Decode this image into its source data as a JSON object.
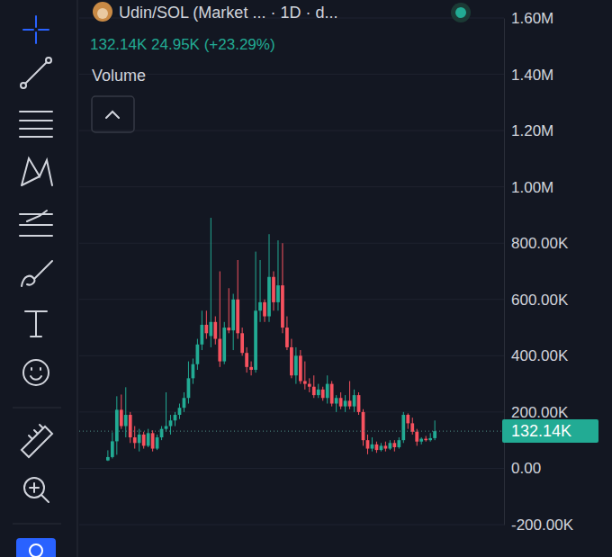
{
  "chart_data": {
    "type": "candlestick",
    "title": "Udin/SOL (Market ... · 1D · d...",
    "subtitle": "132.14K 24.95K (+23.29%)",
    "annotations": [
      {
        "label": "Volume"
      },
      {
        "value": 132140,
        "label": "132.14K"
      }
    ],
    "categories": [
      null,
      null,
      null,
      null,
      null,
      null,
      null,
      null,
      null,
      null,
      null,
      null,
      null,
      null,
      null,
      null,
      null,
      null,
      null,
      null,
      null,
      null,
      null,
      null,
      null,
      null,
      null,
      null,
      null,
      null,
      null,
      null,
      null,
      null,
      null,
      null,
      null,
      null,
      null,
      null,
      null,
      null,
      null,
      null,
      null,
      null,
      null,
      null,
      null,
      null,
      null,
      null,
      null,
      null,
      null,
      null,
      null,
      null,
      null,
      null,
      null,
      null,
      null,
      null,
      null,
      null,
      null,
      null,
      null,
      null,
      null,
      null,
      null,
      null
    ],
    "open": [
      28000,
      40000,
      96000,
      208000,
      150000,
      190000,
      110000,
      90000,
      120000,
      80000,
      125000,
      70000,
      110000,
      140000,
      150000,
      170000,
      190000,
      215000,
      250000,
      320000,
      370000,
      440000,
      510000,
      470000,
      520000,
      460000,
      380000,
      500000,
      490000,
      600000,
      480000,
      410000,
      360000,
      350000,
      560000,
      590000,
      540000,
      680000,
      590000,
      650000,
      500000,
      430000,
      330000,
      400000,
      310000,
      300000,
      290000,
      260000,
      280000,
      250000,
      300000,
      230000,
      250000,
      220000,
      240000,
      220000,
      260000,
      200000,
      100000,
      70000,
      85000,
      65000,
      80000,
      70000,
      90000,
      75000,
      100000,
      190000,
      160000,
      130000,
      95000,
      105000,
      100000,
      107190
    ],
    "high": [
      64000,
      128000,
      256000,
      262000,
      288000,
      200000,
      150000,
      140000,
      130000,
      140000,
      135000,
      120000,
      150000,
      270000,
      190000,
      200000,
      230000,
      270000,
      380000,
      390000,
      460000,
      560000,
      560000,
      890000,
      540000,
      700000,
      520000,
      640000,
      620000,
      740000,
      500000,
      430000,
      380000,
      770000,
      740000,
      600000,
      832000,
      700000,
      810000,
      800000,
      540000,
      460000,
      430000,
      420000,
      380000,
      320000,
      330000,
      300000,
      290000,
      330000,
      310000,
      260000,
      270000,
      260000,
      310000,
      280000,
      270000,
      210000,
      120000,
      110000,
      95000,
      90000,
      95000,
      100000,
      100000,
      110000,
      200000,
      195000,
      180000,
      140000,
      110000,
      115000,
      125000,
      170000
    ],
    "low": [
      26000,
      35000,
      48000,
      140000,
      110000,
      90000,
      70000,
      60000,
      70000,
      75000,
      60000,
      65000,
      100000,
      130000,
      120000,
      150000,
      175000,
      200000,
      230000,
      300000,
      350000,
      420000,
      460000,
      430000,
      440000,
      360000,
      370000,
      480000,
      420000,
      460000,
      400000,
      340000,
      330000,
      340000,
      520000,
      520000,
      520000,
      560000,
      560000,
      480000,
      420000,
      320000,
      300000,
      300000,
      280000,
      270000,
      250000,
      250000,
      240000,
      230000,
      220000,
      200000,
      210000,
      200000,
      210000,
      200000,
      190000,
      80000,
      50000,
      60000,
      55000,
      60000,
      60000,
      65000,
      60000,
      70000,
      90000,
      140000,
      120000,
      80000,
      85000,
      95000,
      95000,
      100000
    ],
    "close": [
      40000,
      96000,
      208000,
      150000,
      190000,
      110000,
      90000,
      120000,
      80000,
      125000,
      70000,
      110000,
      140000,
      150000,
      170000,
      190000,
      215000,
      250000,
      320000,
      370000,
      440000,
      510000,
      480000,
      520000,
      460000,
      380000,
      500000,
      490000,
      600000,
      480000,
      410000,
      360000,
      350000,
      560000,
      590000,
      540000,
      680000,
      590000,
      650000,
      500000,
      430000,
      330000,
      400000,
      310000,
      300000,
      290000,
      260000,
      280000,
      250000,
      300000,
      230000,
      250000,
      220000,
      240000,
      220000,
      260000,
      200000,
      100000,
      70000,
      85000,
      65000,
      80000,
      70000,
      90000,
      75000,
      100000,
      190000,
      160000,
      130000,
      95000,
      105000,
      100000,
      107190,
      132140
    ],
    "colors": [
      "#22ab94",
      "#22ab94",
      "#22ab94",
      "#f7525f",
      "#22ab94",
      "#f7525f",
      "#f7525f",
      "#22ab94",
      "#f7525f",
      "#22ab94",
      "#f7525f",
      "#22ab94",
      "#22ab94",
      "#22ab94",
      "#22ab94",
      "#22ab94",
      "#22ab94",
      "#22ab94",
      "#22ab94",
      "#22ab94",
      "#22ab94",
      "#22ab94",
      "#f7525f",
      "#22ab94",
      "#f7525f",
      "#f7525f",
      "#22ab94",
      "#f7525f",
      "#22ab94",
      "#f7525f",
      "#f7525f",
      "#f7525f",
      "#f7525f",
      "#22ab94",
      "#22ab94",
      "#f7525f",
      "#22ab94",
      "#f7525f",
      "#22ab94",
      "#f7525f",
      "#f7525f",
      "#f7525f",
      "#22ab94",
      "#f7525f",
      "#f7525f",
      "#f7525f",
      "#f7525f",
      "#22ab94",
      "#f7525f",
      "#22ab94",
      "#f7525f",
      "#22ab94",
      "#f7525f",
      "#22ab94",
      "#f7525f",
      "#22ab94",
      "#f7525f",
      "#f7525f",
      "#f7525f",
      "#22ab94",
      "#f7525f",
      "#22ab94",
      "#f7525f",
      "#22ab94",
      "#f7525f",
      "#22ab94",
      "#22ab94",
      "#f7525f",
      "#f7525f",
      "#f7525f",
      "#22ab94",
      "#f7525f",
      "#22ab94",
      "#22ab94"
    ],
    "color": "#22ab94",
    "ylim": [
      -200000,
      1600000
    ],
    "yticks": [
      {
        "value": -200000,
        "label": "-200.00K"
      },
      {
        "value": 0,
        "label": "0.00"
      },
      {
        "value": 200000,
        "label": "200.00K"
      },
      {
        "value": 400000,
        "label": "400.00K"
      },
      {
        "value": 600000,
        "label": "600.00K"
      },
      {
        "value": 800000,
        "label": "800.00K"
      },
      {
        "value": 1000000,
        "label": "1.00M"
      },
      {
        "value": 1200000,
        "label": "1.20M"
      },
      {
        "value": 1400000,
        "label": "1.40M"
      },
      {
        "value": 1600000,
        "label": "1.60M"
      }
    ],
    "grid": true,
    "tick_labels": "y"
  }
}
